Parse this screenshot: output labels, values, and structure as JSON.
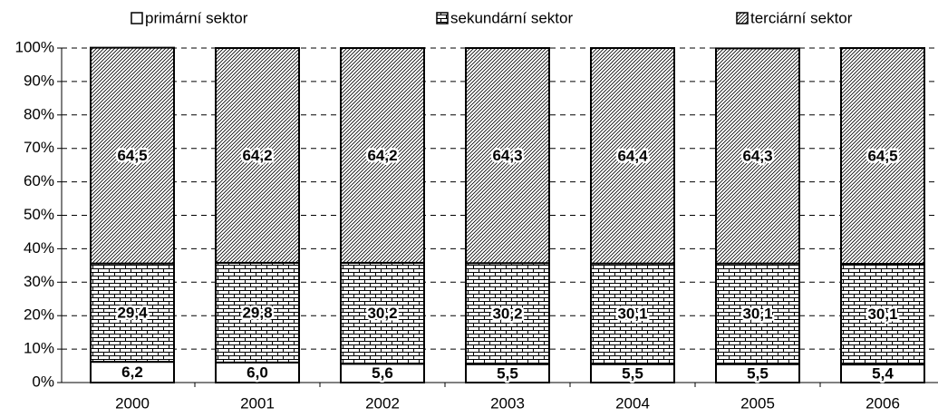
{
  "chart_data": {
    "type": "stacked_bar",
    "categories": [
      "2000",
      "2001",
      "2002",
      "2003",
      "2004",
      "2005",
      "2006"
    ],
    "series": [
      {
        "name": "primární sektor",
        "pattern": "none",
        "values": [
          6.2,
          6.0,
          5.6,
          5.5,
          5.5,
          5.5,
          5.4
        ],
        "value_labels": [
          "6,2",
          "6,0",
          "5,6",
          "5,5",
          "5,5",
          "5,5",
          "5,4"
        ]
      },
      {
        "name": "sekundární sektor",
        "pattern": "brick",
        "values": [
          29.4,
          29.8,
          30.2,
          30.2,
          30.1,
          30.1,
          30.1
        ],
        "value_labels": [
          "29,4",
          "29,8",
          "30,2",
          "30,2",
          "30,1",
          "30,1",
          "30,1"
        ]
      },
      {
        "name": "terciární sektor",
        "pattern": "diagonal",
        "values": [
          64.5,
          64.2,
          64.2,
          64.3,
          64.4,
          64.3,
          64.5
        ],
        "value_labels": [
          "64,5",
          "64,2",
          "64,2",
          "64,3",
          "64,4",
          "64,3",
          "64,5"
        ]
      }
    ],
    "ylim": [
      0,
      100
    ],
    "yticks": [
      {
        "value": 0,
        "label": "0%"
      },
      {
        "value": 10,
        "label": "10%"
      },
      {
        "value": 20,
        "label": "20%"
      },
      {
        "value": 30,
        "label": "30%"
      },
      {
        "value": 40,
        "label": "40%"
      },
      {
        "value": 50,
        "label": "50%"
      },
      {
        "value": 60,
        "label": "60%"
      },
      {
        "value": 70,
        "label": "70%"
      },
      {
        "value": 80,
        "label": "80%"
      },
      {
        "value": 90,
        "label": "90%"
      },
      {
        "value": 100,
        "label": "100%"
      }
    ],
    "grid": true,
    "legend": "top"
  }
}
